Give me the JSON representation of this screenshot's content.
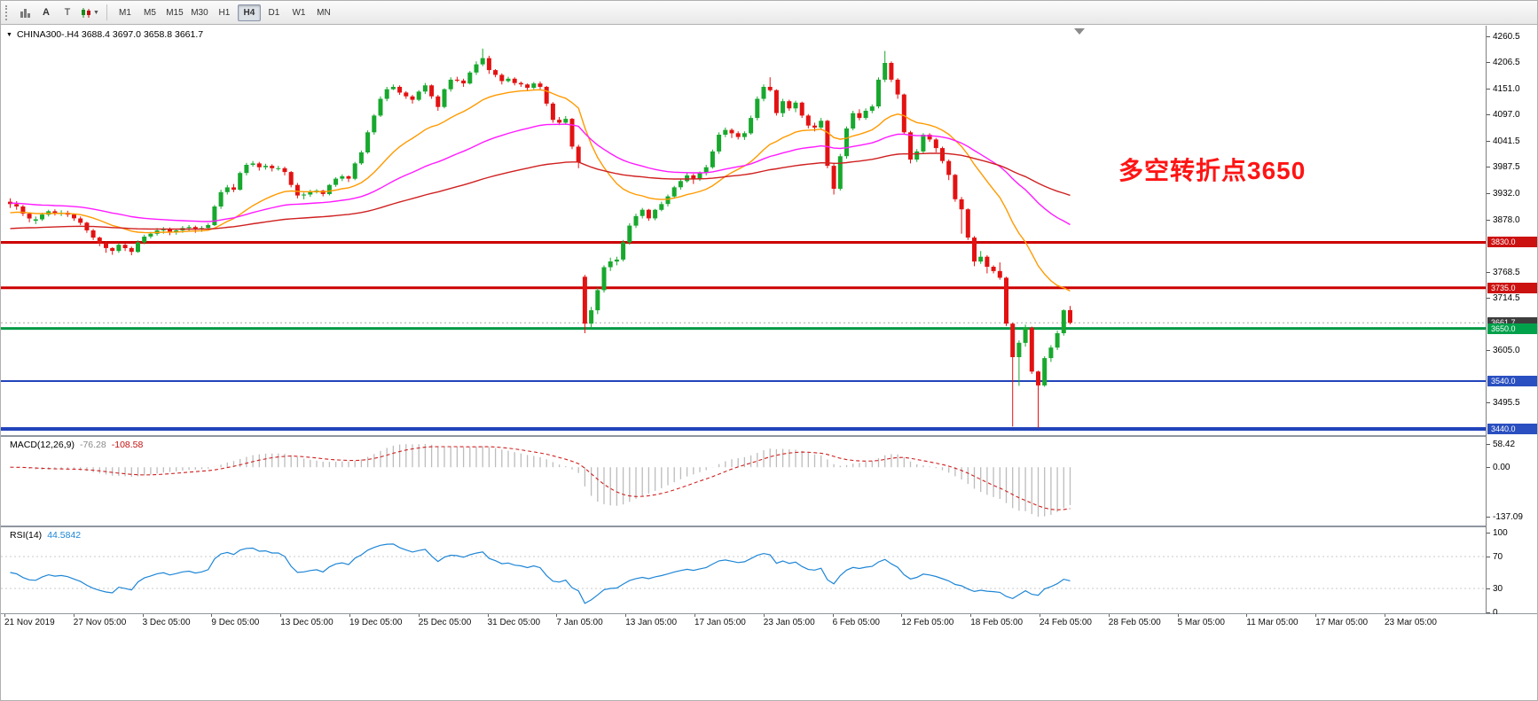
{
  "toolbar": {
    "button_a": "A",
    "button_t": "T",
    "timeframes": [
      "M1",
      "M5",
      "M15",
      "M30",
      "H1",
      "H4",
      "D1",
      "W1",
      "MN"
    ],
    "active_timeframe": "H4"
  },
  "chart": {
    "title": "CHINA300-.H4 3688.4 3697.0 3658.8 3661.7",
    "annotation": {
      "text": "多空转折点3650",
      "color": "#fe1414"
    },
    "price_ticks": [
      {
        "label": "4260.5",
        "price": 4260.5
      },
      {
        "label": "4206.5",
        "price": 4206.5
      },
      {
        "label": "4151.0",
        "price": 4151.0
      },
      {
        "label": "4097.0",
        "price": 4097.0
      },
      {
        "label": "4041.5",
        "price": 4041.5
      },
      {
        "label": "3987.5",
        "price": 3987.5
      },
      {
        "label": "3932.0",
        "price": 3932.0
      },
      {
        "label": "3878.0",
        "price": 3878.0
      },
      {
        "label": "3768.5",
        "price": 3768.5
      },
      {
        "label": "3714.5",
        "price": 3714.5
      },
      {
        "label": "3605.0",
        "price": 3605.0
      },
      {
        "label": "3495.5",
        "price": 3495.5
      }
    ],
    "price_tags": [
      {
        "label": "3830.0",
        "price": 3830.0,
        "bg": "#cc1111"
      },
      {
        "label": "3735.0",
        "price": 3735.0,
        "bg": "#cc1111"
      },
      {
        "label": "3661.7",
        "price": 3661.7,
        "bg": "#3d3d3d"
      },
      {
        "label": "3650.0",
        "price": 3650.0,
        "bg": "#00a14b"
      },
      {
        "label": "3540.0",
        "price": 3540.0,
        "bg": "#2a4fc0"
      },
      {
        "label": "3440.0",
        "price": 3440.0,
        "bg": "#2a4fc0"
      }
    ],
    "hlines": [
      {
        "price": 3830.0,
        "color": "#cc0000",
        "width": 3
      },
      {
        "price": 3735.0,
        "color": "#cc0000",
        "width": 3
      },
      {
        "price": 3650.0,
        "color": "#009944",
        "width": 3
      },
      {
        "price": 3540.0,
        "color": "#2244bb",
        "width": 2
      },
      {
        "price": 3440.0,
        "color": "#2244bb",
        "width": 4
      }
    ],
    "time_labels": [
      "21 Nov 2019",
      "27 Nov 05:00",
      "3 Dec 05:00",
      "9 Dec 05:00",
      "13 Dec 05:00",
      "19 Dec 05:00",
      "25 Dec 05:00",
      "31 Dec 05:00",
      "7 Jan 05:00",
      "13 Jan 05:00",
      "17 Jan 05:00",
      "23 Jan 05:00",
      "6 Feb 05:00",
      "12 Feb 05:00",
      "18 Feb 05:00",
      "24 Feb 05:00",
      "28 Feb 05:00",
      "5 Mar 05:00",
      "11 Mar 05:00",
      "17 Mar 05:00",
      "23 Mar 05:00"
    ]
  },
  "chart_data": {
    "type": "candlestick",
    "symbol": "CHINA300-",
    "timeframe": "H4",
    "current_bar": {
      "open": 3688.4,
      "high": 3697.0,
      "low": 3658.8,
      "close": 3661.7
    },
    "y_axis": {
      "min": 3440.0,
      "max": 4260.5
    },
    "up_color": "#18a82e",
    "down_color": "#e31212",
    "candles_ohlc": [
      [
        3915,
        3922,
        3902,
        3910
      ],
      [
        3910,
        3916,
        3898,
        3905
      ],
      [
        3905,
        3908,
        3885,
        3890
      ],
      [
        3890,
        3893,
        3872,
        3880
      ],
      [
        3875,
        3884,
        3868,
        3878
      ],
      [
        3878,
        3892,
        3875,
        3888
      ],
      [
        3888,
        3898,
        3884,
        3895
      ],
      [
        3895,
        3899,
        3886,
        3890
      ],
      [
        3890,
        3897,
        3885,
        3892
      ],
      [
        3892,
        3896,
        3883,
        3888
      ],
      [
        3888,
        3890,
        3875,
        3880
      ],
      [
        3880,
        3884,
        3866,
        3871
      ],
      [
        3871,
        3873,
        3850,
        3855
      ],
      [
        3855,
        3858,
        3835,
        3840
      ],
      [
        3840,
        3842,
        3822,
        3828
      ],
      [
        3828,
        3832,
        3808,
        3818
      ],
      [
        3818,
        3820,
        3804,
        3812
      ],
      [
        3812,
        3828,
        3808,
        3825
      ],
      [
        3825,
        3827,
        3812,
        3818
      ],
      [
        3818,
        3821,
        3803,
        3810
      ],
      [
        3810,
        3834,
        3808,
        3830
      ],
      [
        3830,
        3846,
        3826,
        3842
      ],
      [
        3842,
        3852,
        3838,
        3848
      ],
      [
        3848,
        3860,
        3844,
        3855
      ],
      [
        3855,
        3862,
        3848,
        3858
      ],
      [
        3858,
        3861,
        3845,
        3851
      ],
      [
        3851,
        3858,
        3846,
        3855
      ],
      [
        3855,
        3864,
        3850,
        3860
      ],
      [
        3860,
        3866,
        3854,
        3862
      ],
      [
        3862,
        3865,
        3850,
        3857
      ],
      [
        3857,
        3864,
        3852,
        3860
      ],
      [
        3860,
        3870,
        3856,
        3866
      ],
      [
        3866,
        3908,
        3864,
        3905
      ],
      [
        3905,
        3940,
        3900,
        3935
      ],
      [
        3935,
        3950,
        3930,
        3945
      ],
      [
        3945,
        3952,
        3935,
        3940
      ],
      [
        3940,
        3978,
        3938,
        3975
      ],
      [
        3975,
        3996,
        3970,
        3992
      ],
      [
        3992,
        4000,
        3988,
        3995
      ],
      [
        3995,
        3998,
        3980,
        3987
      ],
      [
        3987,
        3994,
        3982,
        3990
      ],
      [
        3990,
        3993,
        3978,
        3985
      ],
      [
        3985,
        3990,
        3980,
        3985
      ],
      [
        3985,
        3988,
        3970,
        3977
      ],
      [
        3977,
        3979,
        3945,
        3950
      ],
      [
        3950,
        3954,
        3922,
        3928
      ],
      [
        3928,
        3934,
        3920,
        3930
      ],
      [
        3930,
        3940,
        3925,
        3935
      ],
      [
        3935,
        3941,
        3932,
        3938
      ],
      [
        3938,
        3940,
        3926,
        3931
      ],
      [
        3931,
        3952,
        3928,
        3950
      ],
      [
        3950,
        3966,
        3946,
        3963
      ],
      [
        3963,
        3972,
        3958,
        3968
      ],
      [
        3968,
        3970,
        3956,
        3963
      ],
      [
        3963,
        3998,
        3960,
        3995
      ],
      [
        3995,
        4022,
        3992,
        4018
      ],
      [
        4018,
        4064,
        4015,
        4060
      ],
      [
        4060,
        4098,
        4055,
        4095
      ],
      [
        4095,
        4135,
        4092,
        4130
      ],
      [
        4130,
        4155,
        4125,
        4150
      ],
      [
        4150,
        4160,
        4148,
        4155
      ],
      [
        4155,
        4158,
        4138,
        4143
      ],
      [
        4143,
        4146,
        4130,
        4135
      ],
      [
        4135,
        4138,
        4120,
        4128
      ],
      [
        4128,
        4148,
        4125,
        4145
      ],
      [
        4145,
        4163,
        4140,
        4158
      ],
      [
        4158,
        4160,
        4130,
        4135
      ],
      [
        4135,
        4138,
        4105,
        4113
      ],
      [
        4113,
        4152,
        4110,
        4150
      ],
      [
        4150,
        4175,
        4145,
        4170
      ],
      [
        4170,
        4176,
        4165,
        4168
      ],
      [
        4168,
        4172,
        4155,
        4162
      ],
      [
        4162,
        4188,
        4160,
        4185
      ],
      [
        4185,
        4208,
        4180,
        4202
      ],
      [
        4202,
        4235,
        4198,
        4215
      ],
      [
        4215,
        4220,
        4182,
        4190
      ],
      [
        4190,
        4192,
        4175,
        4180
      ],
      [
        4180,
        4183,
        4160,
        4167
      ],
      [
        4167,
        4176,
        4164,
        4172
      ],
      [
        4172,
        4175,
        4158,
        4163
      ],
      [
        4163,
        4166,
        4155,
        4160
      ],
      [
        4160,
        4162,
        4146,
        4153
      ],
      [
        4153,
        4165,
        4150,
        4162
      ],
      [
        4162,
        4166,
        4150,
        4155
      ],
      [
        4155,
        4157,
        4115,
        4120
      ],
      [
        4120,
        4123,
        4080,
        4086
      ],
      [
        4086,
        4092,
        4075,
        4080
      ],
      [
        4080,
        4094,
        4076,
        4088
      ],
      [
        4088,
        4090,
        4025,
        4030
      ],
      [
        4030,
        4034,
        3985,
        3997
      ],
      [
        3758,
        3762,
        3640,
        3660
      ],
      [
        3660,
        3695,
        3648,
        3688
      ],
      [
        3688,
        3735,
        3680,
        3730
      ],
      [
        3730,
        3782,
        3725,
        3778
      ],
      [
        3778,
        3798,
        3770,
        3790
      ],
      [
        3790,
        3800,
        3782,
        3794
      ],
      [
        3794,
        3835,
        3790,
        3830
      ],
      [
        3830,
        3870,
        3825,
        3865
      ],
      [
        3865,
        3890,
        3860,
        3885
      ],
      [
        3885,
        3902,
        3880,
        3898
      ],
      [
        3898,
        3900,
        3875,
        3880
      ],
      [
        3880,
        3900,
        3876,
        3898
      ],
      [
        3898,
        3915,
        3895,
        3910
      ],
      [
        3910,
        3930,
        3905,
        3926
      ],
      [
        3926,
        3948,
        3922,
        3945
      ],
      [
        3945,
        3962,
        3940,
        3958
      ],
      [
        3958,
        3975,
        3955,
        3970
      ],
      [
        3970,
        3973,
        3952,
        3962
      ],
      [
        3962,
        3978,
        3958,
        3975
      ],
      [
        3975,
        3992,
        3970,
        3987
      ],
      [
        3987,
        4024,
        3984,
        4020
      ],
      [
        4020,
        4060,
        4015,
        4055
      ],
      [
        4055,
        4070,
        4050,
        4065
      ],
      [
        4065,
        4068,
        4048,
        4058
      ],
      [
        4058,
        4062,
        4045,
        4050
      ],
      [
        4050,
        4062,
        4044,
        4058
      ],
      [
        4058,
        4095,
        4055,
        4090
      ],
      [
        4090,
        4135,
        4085,
        4130
      ],
      [
        4130,
        4160,
        4125,
        4155
      ],
      [
        4155,
        4175,
        4145,
        4148
      ],
      [
        4148,
        4150,
        4095,
        4100
      ],
      [
        4100,
        4130,
        4092,
        4125
      ],
      [
        4125,
        4128,
        4105,
        4110
      ],
      [
        4110,
        4126,
        4102,
        4122
      ],
      [
        4122,
        4124,
        4090,
        4095
      ],
      [
        4095,
        4098,
        4068,
        4074
      ],
      [
        4074,
        4080,
        4062,
        4070
      ],
      [
        4070,
        4090,
        4065,
        4084
      ],
      [
        4084,
        4086,
        3985,
        3990
      ],
      [
        3990,
        3994,
        3930,
        3942
      ],
      [
        3942,
        4015,
        3938,
        4010
      ],
      [
        4010,
        4072,
        4005,
        4068
      ],
      [
        4068,
        4105,
        4064,
        4100
      ],
      [
        4100,
        4108,
        4085,
        4090
      ],
      [
        4090,
        4110,
        4086,
        4105
      ],
      [
        4105,
        4118,
        4100,
        4114
      ],
      [
        4114,
        4175,
        4110,
        4170
      ],
      [
        4170,
        4230,
        4165,
        4205
      ],
      [
        4205,
        4208,
        4165,
        4170
      ],
      [
        4170,
        4173,
        4130,
        4139
      ],
      [
        4139,
        4141,
        4055,
        4060
      ],
      [
        4060,
        4063,
        3995,
        4003
      ],
      [
        4003,
        4025,
        3998,
        4020
      ],
      [
        4020,
        4058,
        4015,
        4055
      ],
      [
        4055,
        4058,
        4040,
        4045
      ],
      [
        4045,
        4048,
        4018,
        4027
      ],
      [
        4027,
        4030,
        3995,
        4000
      ],
      [
        4000,
        4003,
        3960,
        3971
      ],
      [
        3971,
        3973,
        3915,
        3920
      ],
      [
        3920,
        3925,
        3848,
        3899
      ],
      [
        3899,
        3901,
        3835,
        3840
      ],
      [
        3840,
        3843,
        3780,
        3790
      ],
      [
        3790,
        3812,
        3785,
        3800
      ],
      [
        3800,
        3803,
        3765,
        3779
      ],
      [
        3779,
        3782,
        3765,
        3770
      ],
      [
        3770,
        3788,
        3752,
        3756
      ],
      [
        3756,
        3758,
        3655,
        3660
      ],
      [
        3660,
        3662,
        3445,
        3590
      ],
      [
        3590,
        3625,
        3530,
        3620
      ],
      [
        3620,
        3658,
        3612,
        3652
      ],
      [
        3652,
        3654,
        3555,
        3560
      ],
      [
        3560,
        3562,
        3442,
        3531
      ],
      [
        3531,
        3592,
        3528,
        3588
      ],
      [
        3588,
        3615,
        3580,
        3610
      ],
      [
        3610,
        3645,
        3605,
        3640
      ],
      [
        3640,
        3690,
        3635,
        3688
      ],
      [
        3688.4,
        3697.0,
        3658.8,
        3661.7
      ]
    ],
    "moving_averages": [
      {
        "name": "fast-ma",
        "period": 21,
        "seed": 3890,
        "color": "#ff9a00"
      },
      {
        "name": "medium-ma",
        "period": 55,
        "seed": 3912,
        "color": "#ff1aff"
      },
      {
        "name": "slow-ma",
        "period": 120,
        "seed": 3858,
        "color": "#d02020"
      }
    ],
    "indicators": {
      "macd": {
        "name_label": "MACD(12,26,9)",
        "main_value": "-76.28",
        "signal_value": "-108.58",
        "fast": 12,
        "slow": 26,
        "signal": 9,
        "axis_labels": [
          "58.42",
          "0.00",
          "-137.09"
        ],
        "histogram_color": "#bcbcbc",
        "signal_color": "#d02020"
      },
      "rsi": {
        "name_label": "RSI(14)",
        "value": "44.5842",
        "period": 14,
        "axis_labels": [
          "100",
          "70",
          "30",
          "0"
        ],
        "levels": [
          70,
          30
        ],
        "line_color": "#1e86d6"
      }
    }
  }
}
